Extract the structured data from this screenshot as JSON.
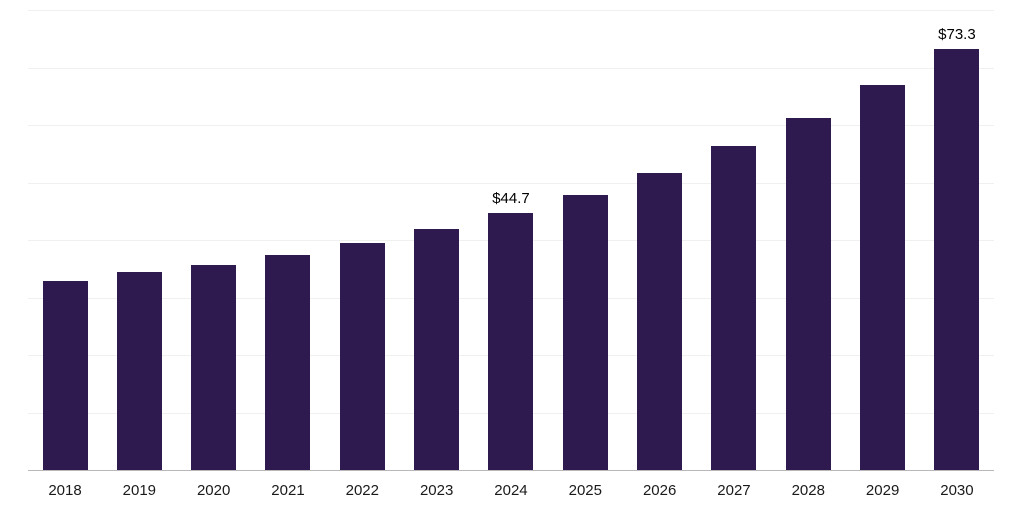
{
  "chart_data": {
    "type": "bar",
    "title": "",
    "xlabel": "",
    "ylabel": "",
    "categories": [
      "2018",
      "2019",
      "2020",
      "2021",
      "2022",
      "2023",
      "2024",
      "2025",
      "2026",
      "2027",
      "2028",
      "2029",
      "2030"
    ],
    "values": [
      32.9,
      34.5,
      35.7,
      37.4,
      39.5,
      41.9,
      44.7,
      47.9,
      51.7,
      56.3,
      61.2,
      67.0,
      73.3
    ],
    "data_labels": {
      "2024": "$44.7",
      "2030": "$73.3"
    },
    "bar_color": "#2e1a4f",
    "axis_line_color": "#b8b8b8",
    "gridline_color": "#f0f0ef",
    "ylim": [
      0,
      80
    ],
    "gridline_step": 10,
    "grid": true,
    "legend": "none"
  }
}
